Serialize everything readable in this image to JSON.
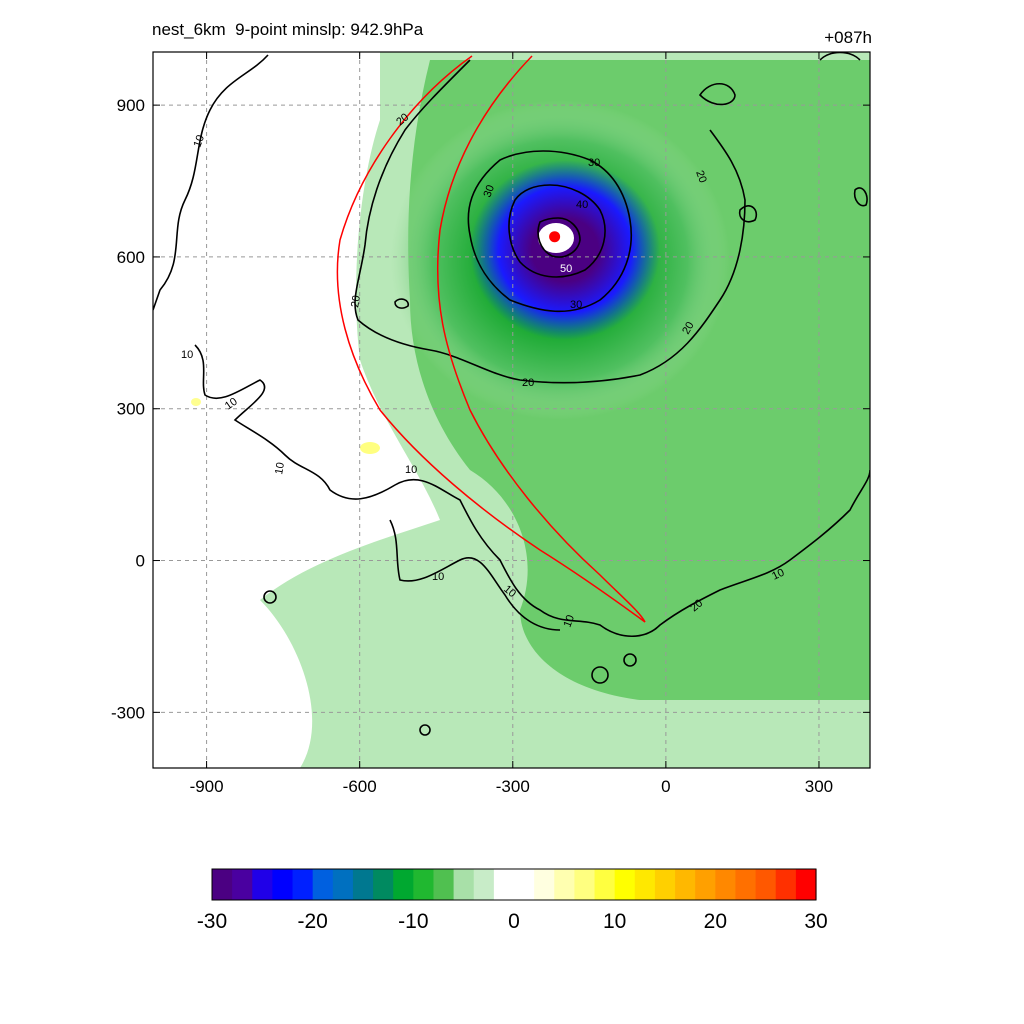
{
  "header": {
    "title": "nest_6km  9-point minslp: 942.9hPa",
    "lead_time": "+087h"
  },
  "chart_data": {
    "type": "heatmap",
    "title": "nest_6km  9-point minslp: 942.9hPa",
    "lead_time": "+087h",
    "xlim": [
      -1005,
      400
    ],
    "ylim": [
      -410,
      1005
    ],
    "xticks": [
      -900,
      -600,
      -300,
      0,
      300
    ],
    "yticks": [
      -300,
      0,
      300,
      600,
      900
    ],
    "xtick_labels": [
      "-900",
      "-600",
      "-300",
      "0",
      "300"
    ],
    "ytick_labels": [
      "-300",
      "0",
      "300",
      "600",
      "900"
    ],
    "grid": true,
    "storm_center": [
      -218,
      640
    ],
    "contour_label_values": [
      "10",
      "10",
      "10",
      "10",
      "10",
      "10",
      "10",
      "10",
      "10",
      "20",
      "20",
      "20",
      "20",
      "20",
      "20",
      "30",
      "30",
      "30",
      "40",
      "50"
    ],
    "colorbar": {
      "ticks": [
        "-30",
        "-20",
        "-10",
        "0",
        "10",
        "20",
        "30"
      ],
      "min": -30,
      "max": 30,
      "levels": 30,
      "placement": "bottom"
    },
    "colors": {
      "strong_negative": "#4b0082",
      "negative": "#0000ff",
      "moderate_negative": "#00a030",
      "weak_negative": "#b8e8b8",
      "neutral": "#ffffff",
      "weak_positive": "#ffff80",
      "positive": "#ffd000",
      "strong_positive": "#ff0000",
      "track_lines": "#ff0000",
      "contours": "#000000"
    }
  }
}
